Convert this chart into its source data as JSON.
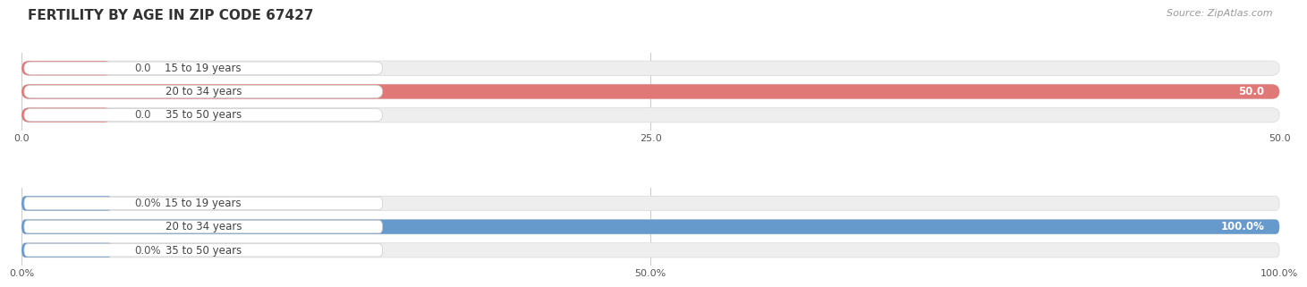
{
  "title": "FERTILITY BY AGE IN ZIP CODE 67427",
  "source": "Source: ZipAtlas.com",
  "top_chart": {
    "categories": [
      "15 to 19 years",
      "20 to 34 years",
      "35 to 50 years"
    ],
    "values": [
      0.0,
      50.0,
      0.0
    ],
    "xlim": [
      0,
      50
    ],
    "xticks": [
      0.0,
      25.0,
      50.0
    ],
    "xtick_labels": [
      "0.0",
      "25.0",
      "50.0"
    ],
    "bar_color": "#e07878",
    "bg_color": "#eeeeee",
    "label_pill_color": "#ffffff",
    "label_text_color": "#444444",
    "value_inside_color": "#ffffff",
    "value_outside_color": "#555555"
  },
  "bottom_chart": {
    "categories": [
      "15 to 19 years",
      "20 to 34 years",
      "35 to 50 years"
    ],
    "values": [
      0.0,
      100.0,
      0.0
    ],
    "xlim": [
      0,
      100
    ],
    "xticks": [
      0.0,
      50.0,
      100.0
    ],
    "xtick_labels": [
      "0.0%",
      "50.0%",
      "100.0%"
    ],
    "bar_color": "#6699cc",
    "bg_color": "#eeeeee",
    "label_pill_color": "#ffffff",
    "label_text_color": "#444444",
    "value_inside_color": "#ffffff",
    "value_outside_color": "#555555"
  },
  "background_color": "#ffffff",
  "bar_height": 0.62,
  "label_fontsize": 8.5,
  "value_fontsize": 8.5,
  "title_fontsize": 11,
  "source_fontsize": 8
}
